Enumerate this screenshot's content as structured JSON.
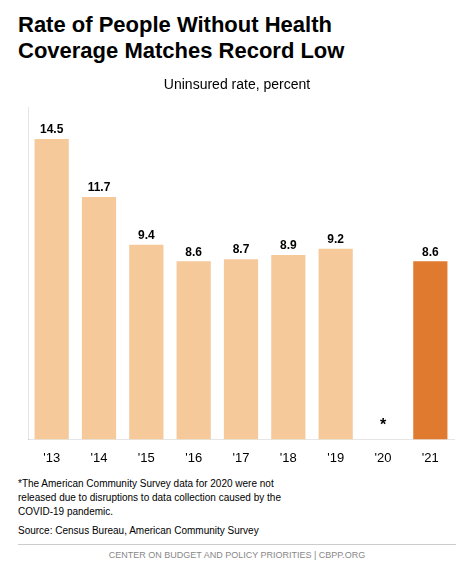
{
  "chart_data": {
    "type": "bar",
    "title": "Rate of People Without Health\nCoverage Matches Record Low",
    "subtitle": "Uninsured rate, percent",
    "categories": [
      "'13",
      "'14",
      "'15",
      "'16",
      "'17",
      "'18",
      "'19",
      "'20",
      "'21"
    ],
    "values": [
      14.5,
      11.7,
      9.4,
      8.6,
      8.7,
      8.9,
      9.2,
      null,
      8.6
    ],
    "colors": [
      "#f5c99a",
      "#f5c99a",
      "#f5c99a",
      "#f5c99a",
      "#f5c99a",
      "#f5c99a",
      "#f5c99a",
      null,
      "#e07a2f"
    ],
    "ylim": [
      0,
      16
    ],
    "grid": false,
    "tick_labels": "x",
    "data_labels": true,
    "annotations": [
      {
        "text": "*",
        "x": "'20"
      }
    ],
    "footnote": "*The American Community Survey data for 2020 were not\nreleased due to disruptions to data collection caused by the\nCOVID-19 pandemic.",
    "source": "Source: Census Bureau, American Community Survey",
    "footer": "CENTER ON BUDGET AND POLICY PRIORITIES  |  CBPP.ORG"
  }
}
